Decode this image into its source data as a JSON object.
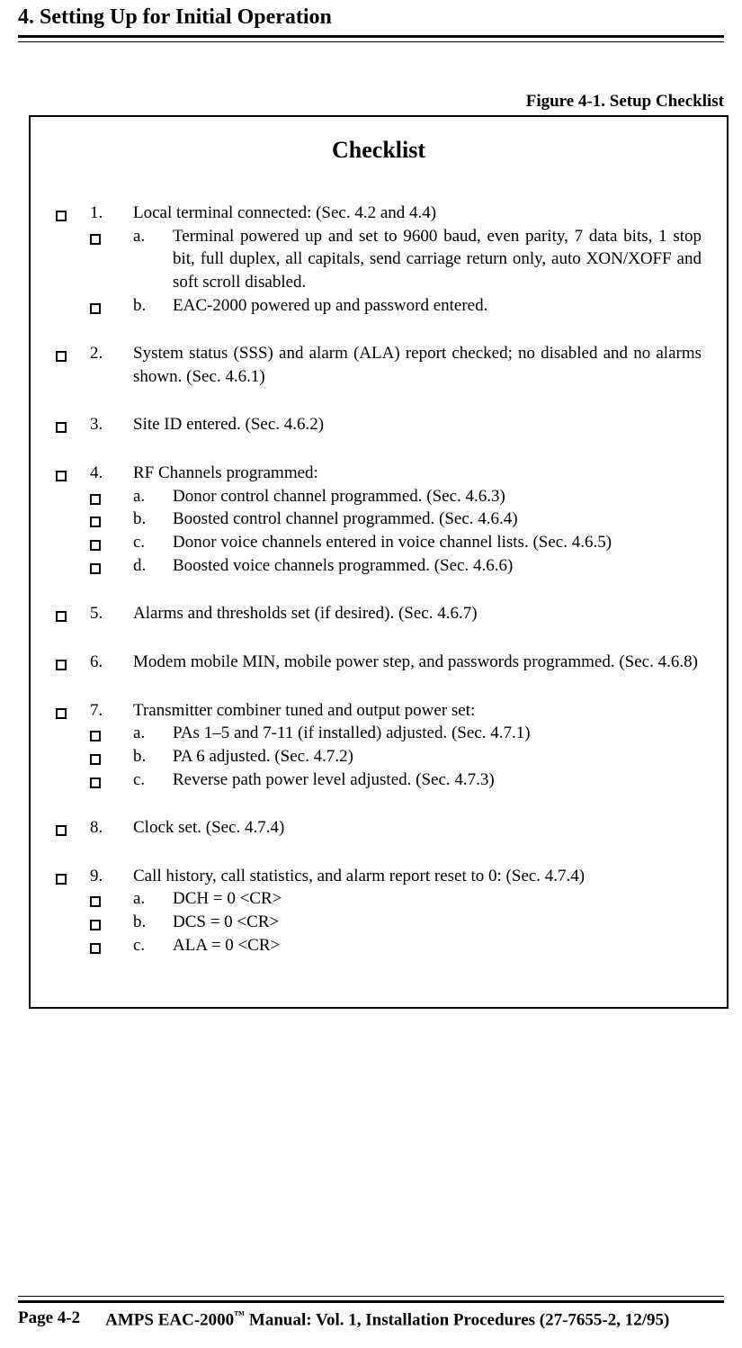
{
  "section_header": "4.  Setting Up for Initial Operation",
  "figure_caption": "Figure 4-1.  Setup Checklist",
  "checklist_title": "Checklist",
  "items": [
    {
      "num": "1.",
      "text": "Local terminal connected:  (Sec. 4.2 and 4.4)",
      "subs": [
        {
          "letter": "a.",
          "text": "Terminal powered up and set to 9600 baud, even parity, 7 data bits, 1 stop bit, full duplex, all capitals, send carriage return only, auto XON/XOFF and soft scroll disabled."
        },
        {
          "letter": "b.",
          "text": "EAC-2000 powered up and password entered."
        }
      ]
    },
    {
      "num": "2.",
      "text": "System status (SSS) and alarm (ALA) report checked; no disabled and no alarms shown.  (Sec. 4.6.1)",
      "subs": []
    },
    {
      "num": "3.",
      "text": "Site ID entered.  (Sec. 4.6.2)",
      "subs": []
    },
    {
      "num": "4.",
      "text": "RF Channels programmed:",
      "subs": [
        {
          "letter": "a.",
          "text": "Donor control channel programmed.  (Sec. 4.6.3)"
        },
        {
          "letter": "b.",
          "text": "Boosted control channel programmed.  (Sec. 4.6.4)"
        },
        {
          "letter": "c.",
          "text": "Donor voice channels entered in voice channel lists.  (Sec. 4.6.5)"
        },
        {
          "letter": "d.",
          "text": "Boosted voice channels programmed.  (Sec. 4.6.6)"
        }
      ]
    },
    {
      "num": "5.",
      "text": "Alarms and thresholds set (if desired).  (Sec. 4.6.7)",
      "subs": []
    },
    {
      "num": "6.",
      "text": "Modem mobile MIN, mobile power step, and passwords programmed.  (Sec. 4.6.8)",
      "subs": []
    },
    {
      "num": "7.",
      "text": "Transmitter combiner tuned and output power set:",
      "subs": [
        {
          "letter": "a.",
          "text": "PAs 1–5 and 7-11 (if installed) adjusted.  (Sec. 4.7.1)"
        },
        {
          "letter": "b.",
          "text": "PA 6 adjusted.  (Sec. 4.7.2)"
        },
        {
          "letter": "c.",
          "text": "Reverse path power level adjusted.  (Sec. 4.7.3)"
        }
      ]
    },
    {
      "num": "8.",
      "text": "Clock set.  (Sec. 4.7.4)",
      "subs": []
    },
    {
      "num": "9.",
      "text": "Call history, call statistics, and alarm report reset to 0:  (Sec. 4.7.4)",
      "subs": [
        {
          "letter": "a.",
          "text": "DCH = 0 <CR>"
        },
        {
          "letter": "b.",
          "text": "DCS = 0 <CR>"
        },
        {
          "letter": "c.",
          "text": "ALA = 0 <CR>"
        }
      ]
    }
  ],
  "footer": {
    "page": "Page 4-2",
    "manual_pre": "AMPS EAC-2000",
    "manual_tm": "™",
    "manual_post": " Manual:  Vol. 1, Installation Procedures (27-7655-2, 12/95)"
  }
}
